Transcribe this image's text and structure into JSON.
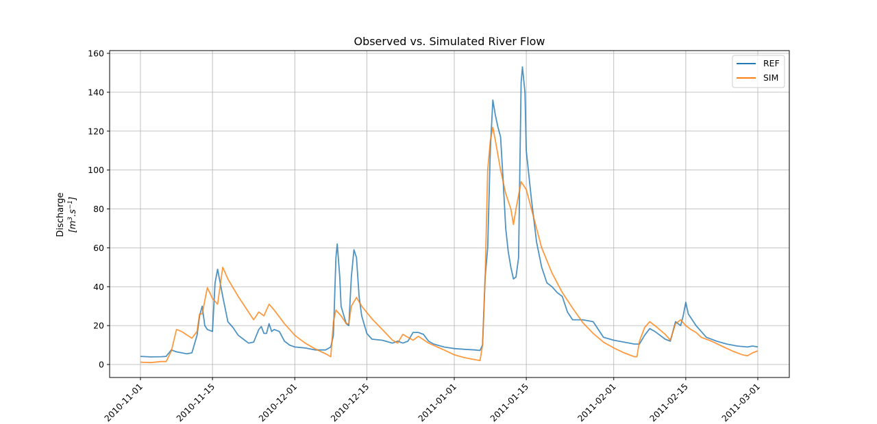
{
  "chart_data": {
    "type": "line",
    "title": "Observed vs. Simulated River Flow",
    "xlabel": "",
    "ylabel_line1": "Discharge",
    "ylabel_unit_base": "[m",
    "ylabel_unit_sup1": "3",
    "ylabel_unit_mid": ".s",
    "ylabel_unit_sup2": "−1",
    "ylabel_unit_end": "]",
    "xlim": [
      "2010-11-01",
      "2011-03-01"
    ],
    "ylim": [
      0,
      160
    ],
    "yticks": [
      0,
      20,
      40,
      60,
      80,
      100,
      120,
      140,
      160
    ],
    "xticks": [
      "2010-11-01",
      "2010-11-15",
      "2010-12-01",
      "2010-12-15",
      "2011-01-01",
      "2011-01-15",
      "2011-02-01",
      "2011-02-15",
      "2011-03-01"
    ],
    "grid": true,
    "legend_position": "top-right",
    "series": [
      {
        "name": "REF",
        "color": "#1f77b4",
        "points": [
          [
            "2010-11-01",
            4.2
          ],
          [
            "2010-11-03",
            3.9
          ],
          [
            "2010-11-05",
            4.0
          ],
          [
            "2010-11-06",
            4.2
          ],
          [
            "2010-11-07",
            7.5
          ],
          [
            "2010-11-08",
            6.5
          ],
          [
            "2010-11-09",
            6.0
          ],
          [
            "2010-11-10",
            5.5
          ],
          [
            "2010-11-11",
            6.0
          ],
          [
            "2010-11-12",
            15.0
          ],
          [
            "2010-11-12 12:00",
            25.0
          ],
          [
            "2010-11-13",
            30.0
          ],
          [
            "2010-11-13 12:00",
            20.0
          ],
          [
            "2010-11-14",
            18.0
          ],
          [
            "2010-11-15",
            17.0
          ],
          [
            "2010-11-15 12:00",
            42.0
          ],
          [
            "2010-11-16",
            49.0
          ],
          [
            "2010-11-17",
            35.0
          ],
          [
            "2010-11-18",
            22.0
          ],
          [
            "2010-11-19",
            19.0
          ],
          [
            "2010-11-20",
            15.0
          ],
          [
            "2010-11-21",
            13.0
          ],
          [
            "2010-11-22",
            11.0
          ],
          [
            "2010-11-23",
            11.5
          ],
          [
            "2010-11-24",
            18.0
          ],
          [
            "2010-11-24 12:00",
            19.5
          ],
          [
            "2010-11-25",
            16.0
          ],
          [
            "2010-11-25 12:00",
            16.0
          ],
          [
            "2010-11-26",
            21.0
          ],
          [
            "2010-11-26 12:00",
            17.0
          ],
          [
            "2010-11-27",
            18.0
          ],
          [
            "2010-11-28",
            17.0
          ],
          [
            "2010-11-29",
            12.0
          ],
          [
            "2010-11-30",
            10.0
          ],
          [
            "2010-12-01",
            9.0
          ],
          [
            "2010-12-03",
            8.5
          ],
          [
            "2010-12-05",
            7.5
          ],
          [
            "2010-12-07",
            7.5
          ],
          [
            "2010-12-08",
            9.0
          ],
          [
            "2010-12-08 12:00",
            15.0
          ],
          [
            "2010-12-09",
            55.0
          ],
          [
            "2010-12-09 06:00",
            62.0
          ],
          [
            "2010-12-09 18:00",
            45.0
          ],
          [
            "2010-12-10",
            30.0
          ],
          [
            "2010-12-11",
            21.0
          ],
          [
            "2010-12-11 12:00",
            20.0
          ],
          [
            "2010-12-12",
            45.0
          ],
          [
            "2010-12-12 12:00",
            59.0
          ],
          [
            "2010-12-13",
            55.0
          ],
          [
            "2010-12-13 12:00",
            35.0
          ],
          [
            "2010-12-14",
            25.0
          ],
          [
            "2010-12-15",
            16.0
          ],
          [
            "2010-12-16",
            13.0
          ],
          [
            "2010-12-18",
            12.5
          ],
          [
            "2010-12-20",
            11.0
          ],
          [
            "2010-12-21",
            12.0
          ],
          [
            "2010-12-22",
            11.0
          ],
          [
            "2010-12-23",
            12.0
          ],
          [
            "2010-12-24",
            16.5
          ],
          [
            "2010-12-25",
            16.5
          ],
          [
            "2010-12-26",
            15.5
          ],
          [
            "2010-12-27",
            12.0
          ],
          [
            "2010-12-28",
            10.5
          ],
          [
            "2010-12-30",
            9.0
          ],
          [
            "2011-01-01",
            8.2
          ],
          [
            "2011-01-03",
            7.8
          ],
          [
            "2011-01-05",
            7.5
          ],
          [
            "2011-01-06",
            7.2
          ],
          [
            "2011-01-06 12:00",
            10.0
          ],
          [
            "2011-01-07",
            45.0
          ],
          [
            "2011-01-07 12:00",
            60.0
          ],
          [
            "2011-01-08",
            110.0
          ],
          [
            "2011-01-08 12:00",
            136.0
          ],
          [
            "2011-01-09",
            128.0
          ],
          [
            "2011-01-09 12:00",
            122.0
          ],
          [
            "2011-01-10",
            117.0
          ],
          [
            "2011-01-10 12:00",
            95.0
          ],
          [
            "2011-01-11",
            70.0
          ],
          [
            "2011-01-11 12:00",
            58.0
          ],
          [
            "2011-01-12",
            50.0
          ],
          [
            "2011-01-12 12:00",
            44.0
          ],
          [
            "2011-01-13",
            45.0
          ],
          [
            "2011-01-13 12:00",
            55.0
          ],
          [
            "2011-01-13 18:00",
            100.0
          ],
          [
            "2011-01-14",
            145.0
          ],
          [
            "2011-01-14 06:00",
            153.0
          ],
          [
            "2011-01-14 18:00",
            140.0
          ],
          [
            "2011-01-15",
            110.0
          ],
          [
            "2011-01-16",
            85.0
          ],
          [
            "2011-01-17",
            63.0
          ],
          [
            "2011-01-18",
            50.0
          ],
          [
            "2011-01-19",
            42.0
          ],
          [
            "2011-01-20",
            40.0
          ],
          [
            "2011-01-21",
            37.0
          ],
          [
            "2011-01-22",
            35.0
          ],
          [
            "2011-01-23",
            27.0
          ],
          [
            "2011-01-24",
            23.0
          ],
          [
            "2011-01-26",
            23.0
          ],
          [
            "2011-01-28",
            22.0
          ],
          [
            "2011-01-29",
            18.0
          ],
          [
            "2011-01-30",
            14.0
          ],
          [
            "2011-02-01",
            12.5
          ],
          [
            "2011-02-03",
            11.5
          ],
          [
            "2011-02-05",
            10.5
          ],
          [
            "2011-02-06",
            10.5
          ],
          [
            "2011-02-07",
            15.0
          ],
          [
            "2011-02-08",
            18.5
          ],
          [
            "2011-02-09",
            17.0
          ],
          [
            "2011-02-10",
            15.0
          ],
          [
            "2011-02-11",
            13.0
          ],
          [
            "2011-02-12",
            12.0
          ],
          [
            "2011-02-13",
            22.0
          ],
          [
            "2011-02-14",
            20.0
          ],
          [
            "2011-02-14 12:00",
            25.0
          ],
          [
            "2011-02-15",
            32.0
          ],
          [
            "2011-02-15 12:00",
            26.0
          ],
          [
            "2011-02-16",
            24.0
          ],
          [
            "2011-02-17",
            20.0
          ],
          [
            "2011-02-18",
            17.0
          ],
          [
            "2011-02-19",
            14.0
          ],
          [
            "2011-02-21",
            12.0
          ],
          [
            "2011-02-23",
            10.5
          ],
          [
            "2011-02-25",
            9.5
          ],
          [
            "2011-02-27",
            9.0
          ],
          [
            "2011-02-28",
            9.5
          ],
          [
            "2011-03-01",
            9.0
          ]
        ]
      },
      {
        "name": "SIM",
        "color": "#ff7f0e",
        "points": [
          [
            "2010-11-01",
            1.2
          ],
          [
            "2010-11-03",
            1.0
          ],
          [
            "2010-11-05",
            1.5
          ],
          [
            "2010-11-06",
            1.5
          ],
          [
            "2010-11-07",
            7.0
          ],
          [
            "2010-11-08",
            18.0
          ],
          [
            "2010-11-09",
            17.0
          ],
          [
            "2010-11-11",
            13.5
          ],
          [
            "2010-11-12",
            17.0
          ],
          [
            "2010-11-12 12:00",
            26.0
          ],
          [
            "2010-11-13",
            26.0
          ],
          [
            "2010-11-14",
            39.5
          ],
          [
            "2010-11-15",
            34.0
          ],
          [
            "2010-11-16",
            31.0
          ],
          [
            "2010-11-17",
            50.0
          ],
          [
            "2010-11-18",
            44.0
          ],
          [
            "2010-11-19",
            39.5
          ],
          [
            "2010-11-20",
            35.0
          ],
          [
            "2010-11-22",
            27.0
          ],
          [
            "2010-11-23",
            23.0
          ],
          [
            "2010-11-24",
            27.0
          ],
          [
            "2010-11-25",
            25.0
          ],
          [
            "2010-11-26",
            31.0
          ],
          [
            "2010-11-27",
            28.0
          ],
          [
            "2010-11-29",
            21.0
          ],
          [
            "2010-12-01",
            15.0
          ],
          [
            "2010-12-03",
            11.0
          ],
          [
            "2010-12-05",
            8.0
          ],
          [
            "2010-12-07",
            5.5
          ],
          [
            "2010-12-08",
            4.0
          ],
          [
            "2010-12-08 12:00",
            22.0
          ],
          [
            "2010-12-09",
            28.0
          ],
          [
            "2010-12-10",
            25.0
          ],
          [
            "2010-12-11",
            21.0
          ],
          [
            "2010-12-11 12:00",
            21.0
          ],
          [
            "2010-12-12",
            30.0
          ],
          [
            "2010-12-13",
            34.5
          ],
          [
            "2010-12-14",
            30.0
          ],
          [
            "2010-12-16",
            23.5
          ],
          [
            "2010-12-18",
            18.0
          ],
          [
            "2010-12-20",
            12.5
          ],
          [
            "2010-12-21",
            11.0
          ],
          [
            "2010-12-22",
            15.5
          ],
          [
            "2010-12-23",
            14.0
          ],
          [
            "2010-12-24",
            12.5
          ],
          [
            "2010-12-25",
            14.5
          ],
          [
            "2010-12-27",
            11.0
          ],
          [
            "2010-12-30",
            7.5
          ],
          [
            "2011-01-01",
            5.0
          ],
          [
            "2011-01-03",
            3.5
          ],
          [
            "2011-01-05",
            2.5
          ],
          [
            "2011-01-06",
            2.0
          ],
          [
            "2011-01-06 12:00",
            10.0
          ],
          [
            "2011-01-07",
            45.0
          ],
          [
            "2011-01-07 12:00",
            100.0
          ],
          [
            "2011-01-08",
            115.0
          ],
          [
            "2011-01-08 12:00",
            122.0
          ],
          [
            "2011-01-09",
            115.0
          ],
          [
            "2011-01-10",
            100.0
          ],
          [
            "2011-01-11",
            88.0
          ],
          [
            "2011-01-12",
            80.0
          ],
          [
            "2011-01-12 12:00",
            72.0
          ],
          [
            "2011-01-13",
            80.0
          ],
          [
            "2011-01-14",
            94.0
          ],
          [
            "2011-01-15",
            90.0
          ],
          [
            "2011-01-16",
            80.0
          ],
          [
            "2011-01-18",
            60.0
          ],
          [
            "2011-01-20",
            47.0
          ],
          [
            "2011-01-22",
            37.0
          ],
          [
            "2011-01-24",
            29.0
          ],
          [
            "2011-01-26",
            21.5
          ],
          [
            "2011-01-28",
            16.0
          ],
          [
            "2011-01-30",
            11.5
          ],
          [
            "2011-02-01",
            8.5
          ],
          [
            "2011-02-03",
            6.0
          ],
          [
            "2011-02-05",
            4.0
          ],
          [
            "2011-02-05 12:00",
            4.0
          ],
          [
            "2011-02-06",
            12.0
          ],
          [
            "2011-02-07",
            19.0
          ],
          [
            "2011-02-08",
            22.0
          ],
          [
            "2011-02-09",
            20.0
          ],
          [
            "2011-02-11",
            15.5
          ],
          [
            "2011-02-12",
            12.5
          ],
          [
            "2011-02-13",
            21.0
          ],
          [
            "2011-02-14",
            23.0
          ],
          [
            "2011-02-15",
            20.0
          ],
          [
            "2011-02-16",
            18.0
          ],
          [
            "2011-02-17",
            16.5
          ],
          [
            "2011-02-18",
            14.0
          ],
          [
            "2011-02-20",
            12.0
          ],
          [
            "2011-02-22",
            9.5
          ],
          [
            "2011-02-24",
            7.0
          ],
          [
            "2011-02-26",
            5.0
          ],
          [
            "2011-02-27",
            4.5
          ],
          [
            "2011-02-28",
            6.0
          ],
          [
            "2011-03-01",
            7.0
          ]
        ]
      }
    ]
  }
}
